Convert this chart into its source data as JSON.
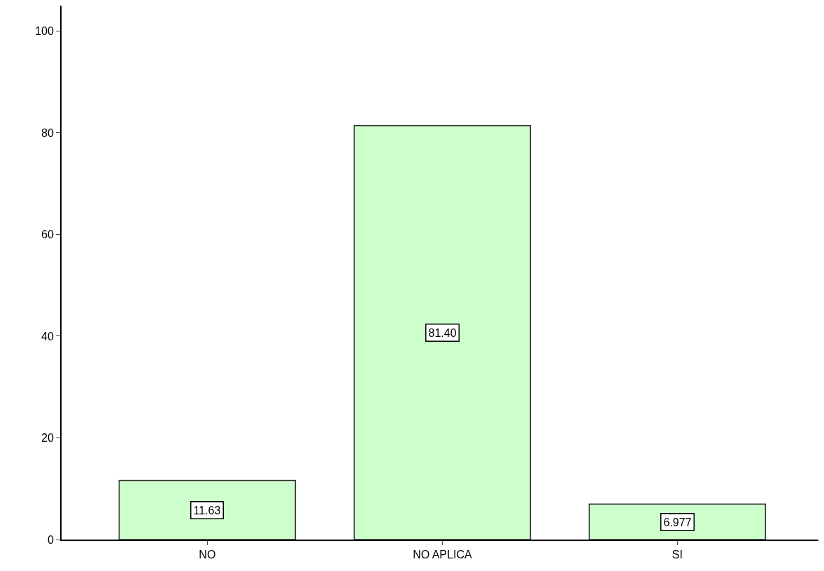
{
  "chart_data": {
    "type": "bar",
    "categories": [
      "NO",
      "NO APLICA",
      "SI"
    ],
    "values": [
      11.63,
      81.4,
      6.977
    ],
    "value_labels": [
      "11.63",
      "81.40",
      "6.977"
    ],
    "color": "#ccffcc",
    "ylim": [
      0,
      105
    ],
    "yticks": [
      0,
      20,
      40,
      60,
      80,
      100
    ]
  }
}
